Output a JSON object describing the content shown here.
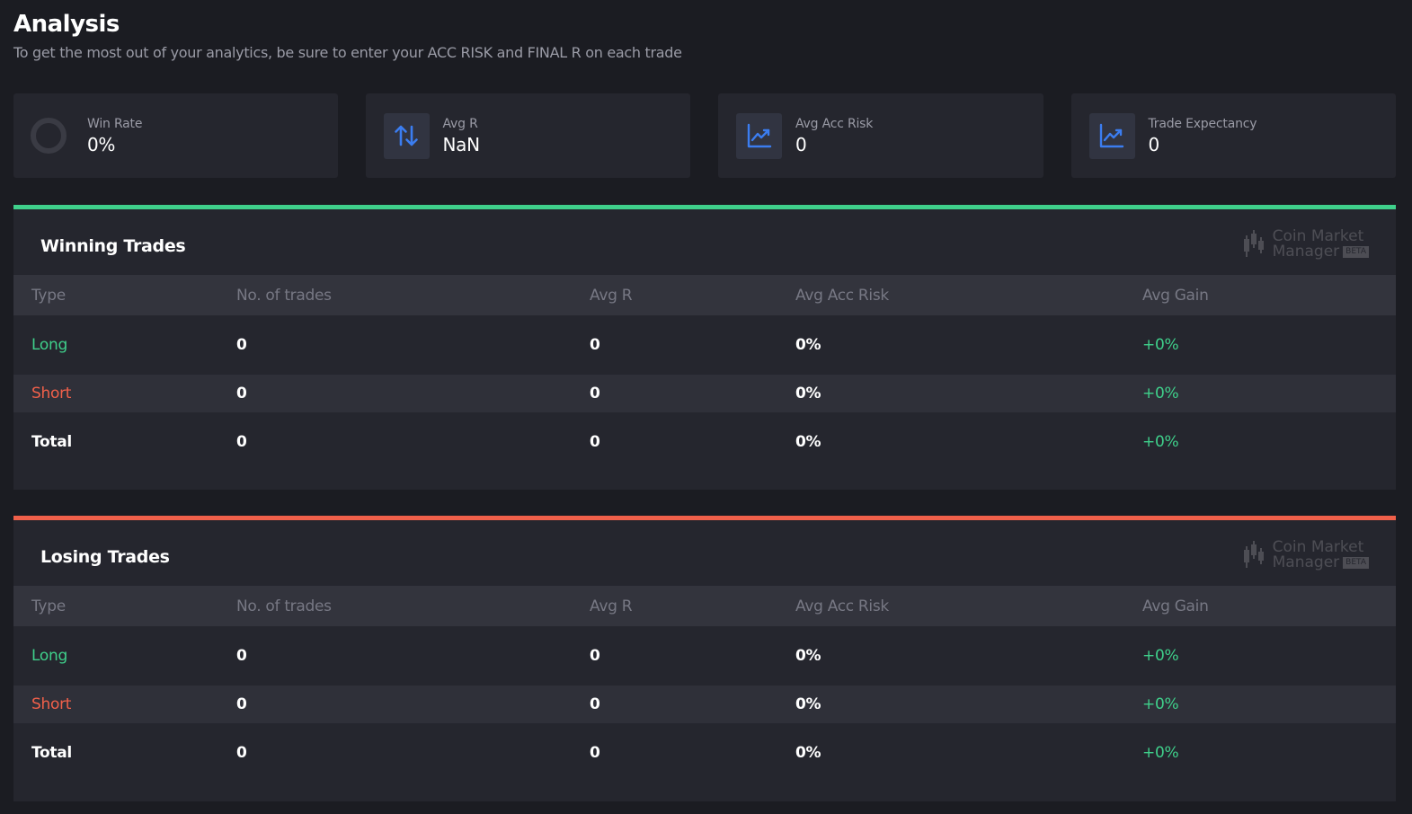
{
  "page": {
    "title": "Analysis",
    "subtitle": "To get the most out of your analytics, be sure to enter your ACC RISK and FINAL R on each trade"
  },
  "stats": [
    {
      "label": "Win Rate",
      "value": "0%",
      "icon": "progress-ring-icon"
    },
    {
      "label": "Avg R",
      "value": "NaN",
      "icon": "up-down-arrows-icon"
    },
    {
      "label": "Avg Acc Risk",
      "value": "0",
      "icon": "trend-chart-icon"
    },
    {
      "label": "Trade Expectancy",
      "value": "0",
      "icon": "trend-chart-icon"
    }
  ],
  "watermark": {
    "line1": "Coin Market",
    "line2": "Manager",
    "badge": "BETA"
  },
  "columns": [
    "Type",
    "No. of trades",
    "Avg R",
    "Avg Acc Risk",
    "Avg Gain"
  ],
  "winning": {
    "title": "Winning Trades",
    "accent": "#3fd08b",
    "rows": [
      [
        "Long",
        "0",
        "0",
        "0%",
        "+0%"
      ],
      [
        "Short",
        "0",
        "0",
        "0%",
        "+0%"
      ],
      [
        "Total",
        "0",
        "0",
        "0%",
        "+0%"
      ]
    ]
  },
  "losing": {
    "title": "Losing Trades",
    "accent": "#f0604a",
    "rows": [
      [
        "Long",
        "0",
        "0",
        "0%",
        "+0%"
      ],
      [
        "Short",
        "0",
        "0",
        "0%",
        "+0%"
      ],
      [
        "Total",
        "0",
        "0",
        "0%",
        "+0%"
      ]
    ]
  },
  "colors": {
    "long": "#3fd08b",
    "short": "#f0604a",
    "gain": "#3fd08b",
    "icon": "#3b7df0"
  }
}
